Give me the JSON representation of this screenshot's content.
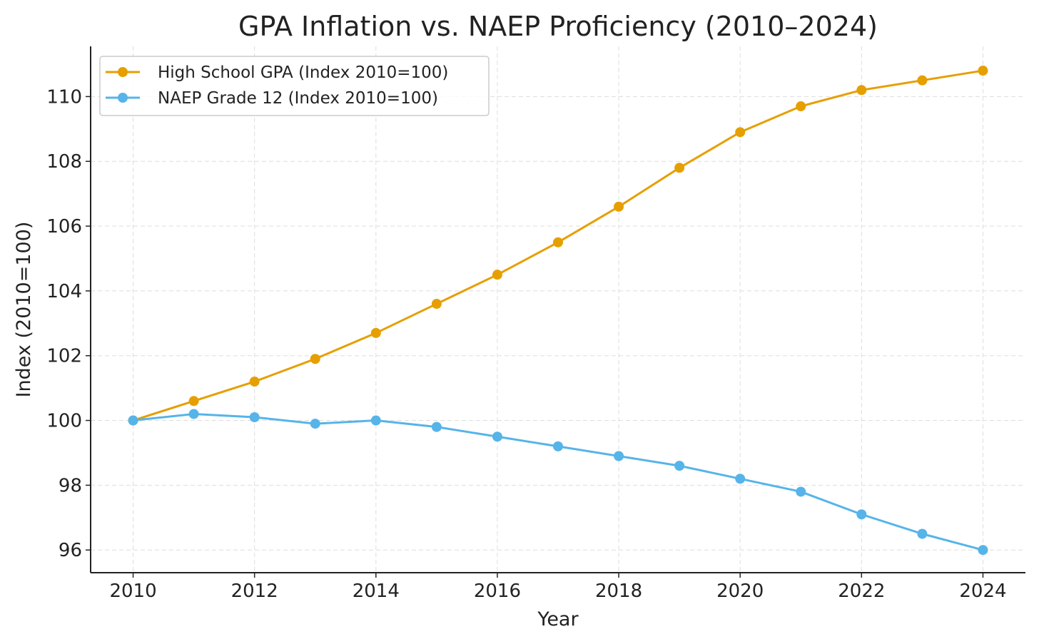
{
  "chart_data": {
    "type": "line",
    "title": "GPA Inflation vs. NAEP Proficiency (2010–2024)",
    "xlabel": "Year",
    "ylabel": "Index (2010=100)",
    "x": [
      2010,
      2011,
      2012,
      2013,
      2014,
      2015,
      2016,
      2017,
      2018,
      2019,
      2020,
      2021,
      2022,
      2023,
      2024
    ],
    "xlim": [
      2009.3,
      2024.7
    ],
    "ylim": [
      95.3,
      111.55
    ],
    "xticks": [
      2010,
      2012,
      2014,
      2016,
      2018,
      2020,
      2022,
      2024
    ],
    "xtick_labels": [
      "2010",
      "2012",
      "2014",
      "2016",
      "2018",
      "2020",
      "2022",
      "2024"
    ],
    "yticks": [
      96,
      98,
      100,
      102,
      104,
      106,
      108,
      110
    ],
    "ytick_labels": [
      "96",
      "98",
      "100",
      "102",
      "104",
      "106",
      "108",
      "110"
    ],
    "grid": true,
    "legend_position": "top-left",
    "series": [
      {
        "name": "High School GPA (Index 2010=100)",
        "color": "#E69F00",
        "values": [
          100,
          100.6,
          101.2,
          101.9,
          102.7,
          103.6,
          104.5,
          105.5,
          106.6,
          107.8,
          108.9,
          109.7,
          110.2,
          110.5,
          110.8
        ]
      },
      {
        "name": "NAEP Grade 12 (Index 2010=100)",
        "color": "#56B4E9",
        "values": [
          100,
          100.2,
          100.1,
          99.9,
          100,
          99.8,
          99.5,
          99.2,
          98.9,
          98.6,
          98.2,
          97.8,
          97.1,
          96.5,
          96.0
        ]
      }
    ]
  }
}
